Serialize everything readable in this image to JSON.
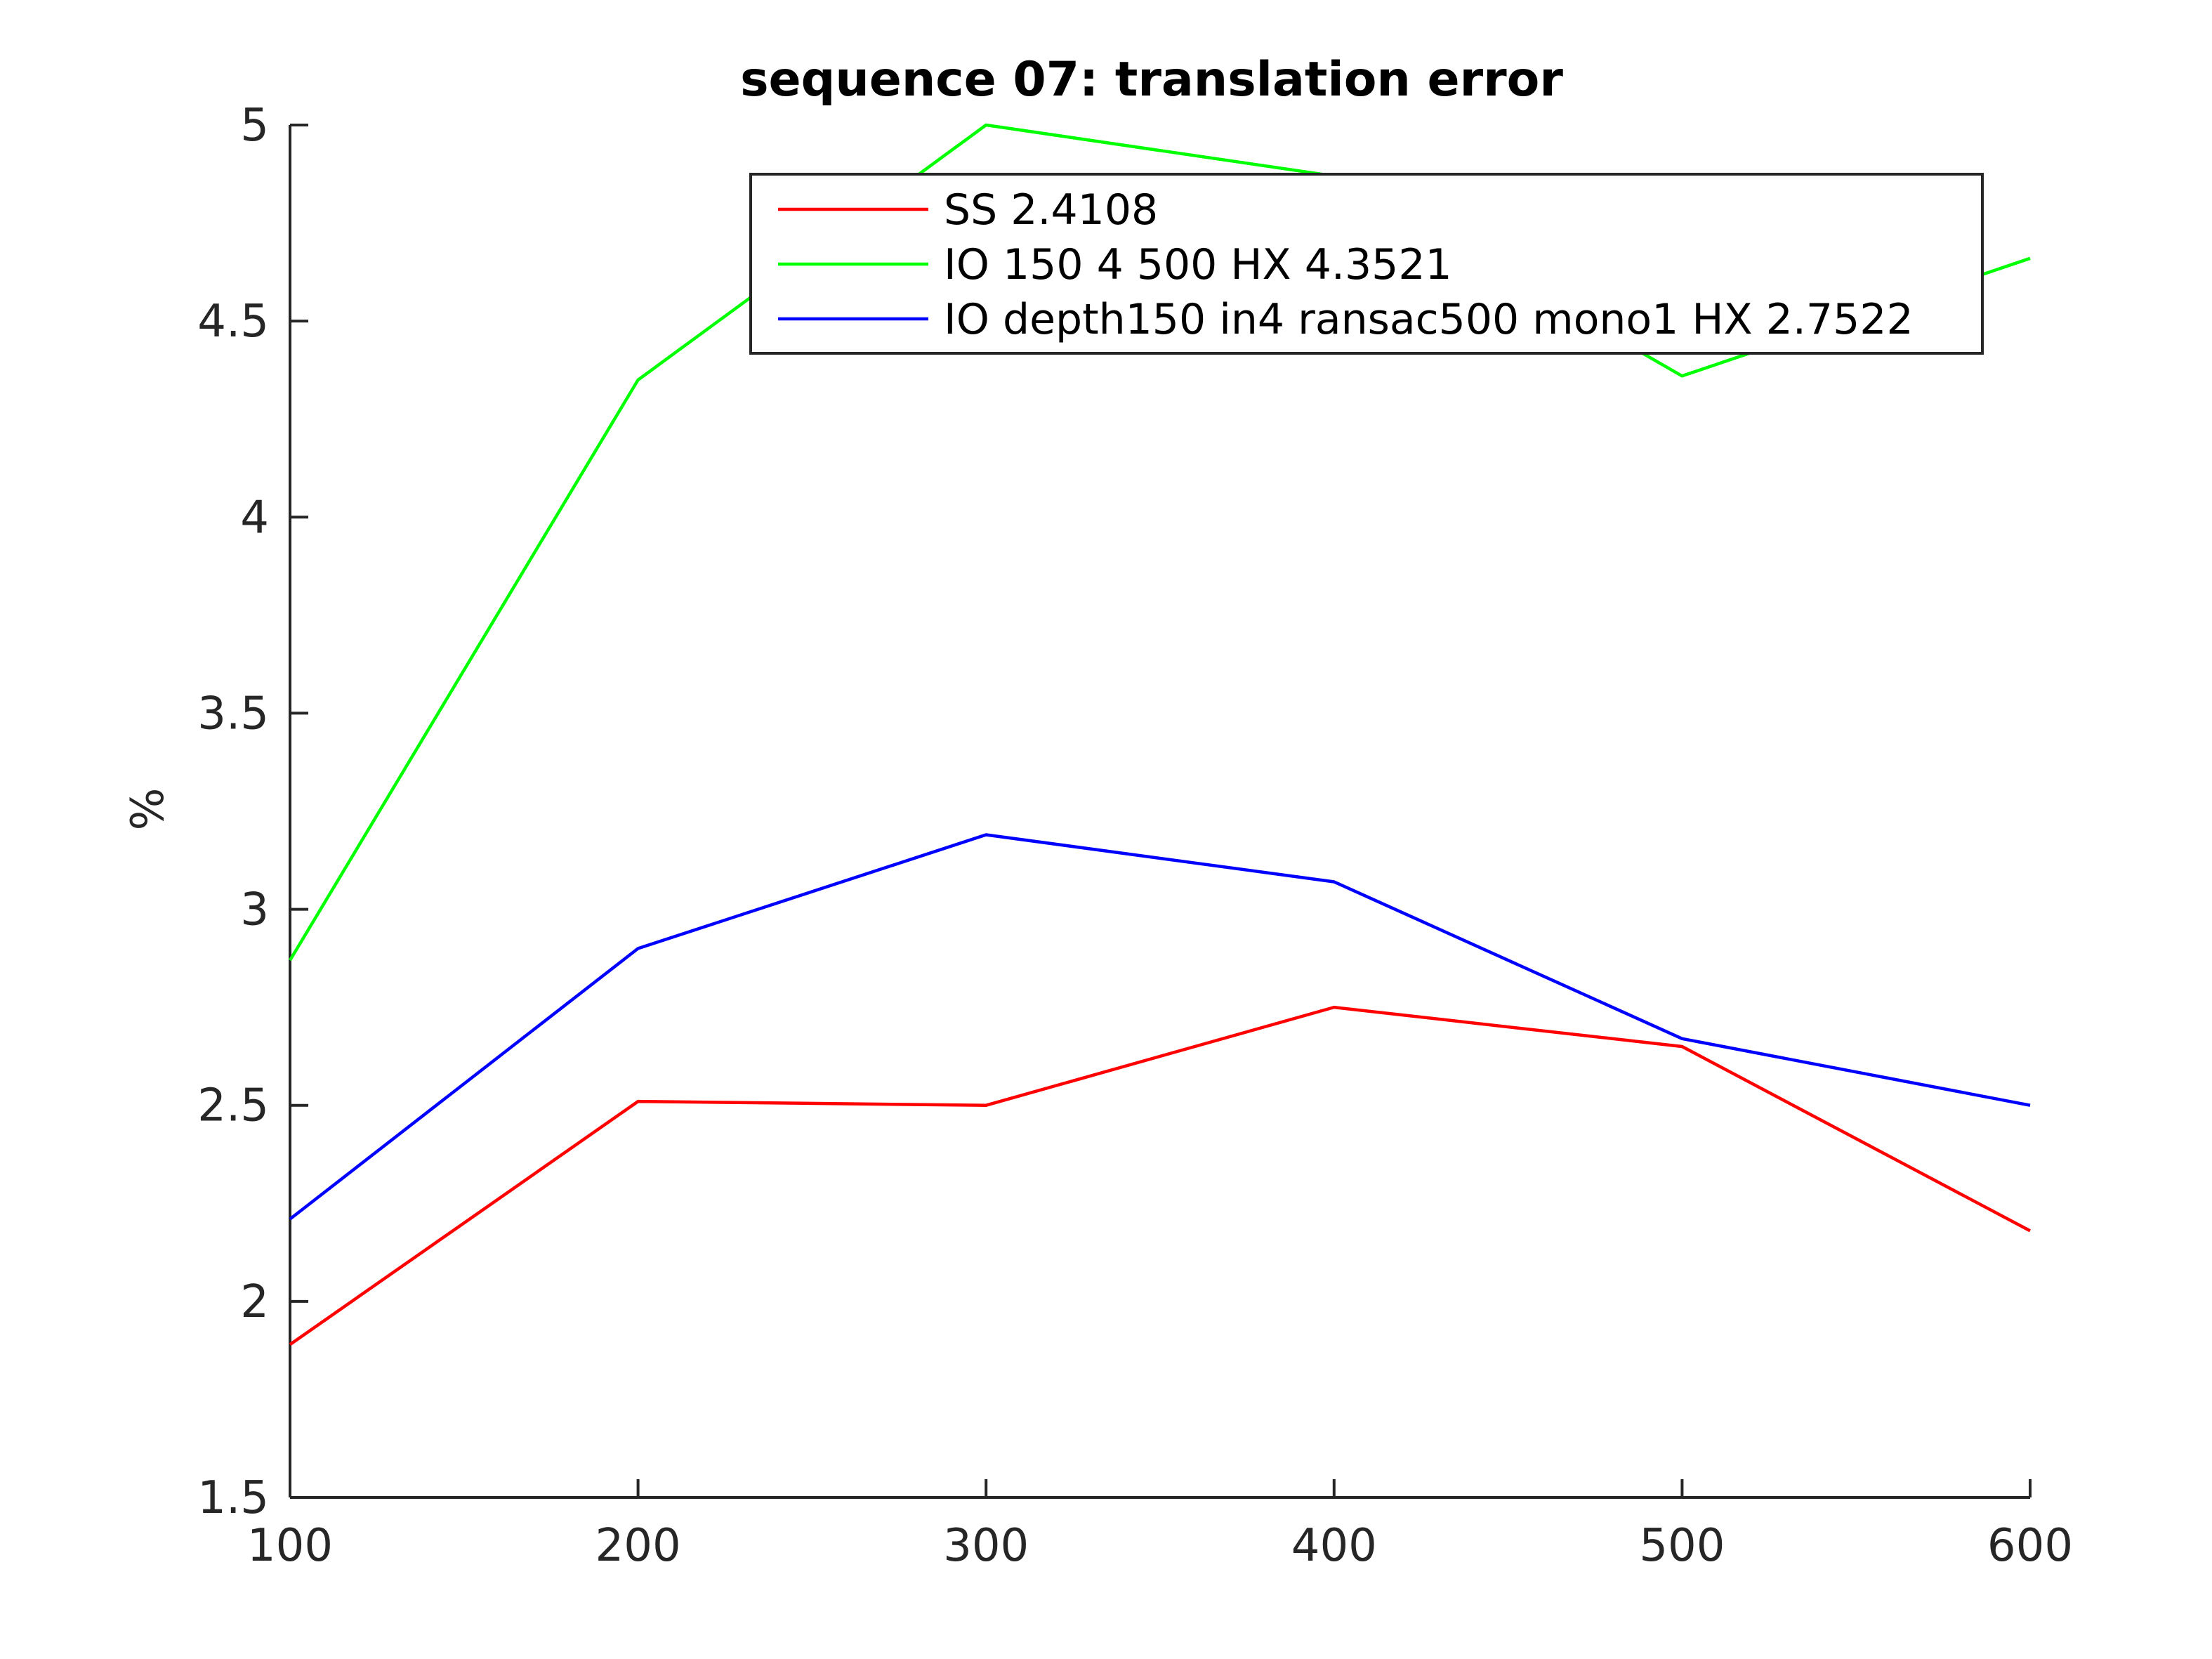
{
  "chart_data": {
    "type": "line",
    "title": "sequence 07: translation error",
    "xlabel": "",
    "ylabel": "%",
    "xlim": [
      100,
      600
    ],
    "ylim": [
      1.5,
      5
    ],
    "xticks": [
      100,
      200,
      300,
      400,
      500,
      600
    ],
    "yticks": [
      1.5,
      2,
      2.5,
      3,
      3.5,
      4,
      4.5,
      5
    ],
    "x": [
      100,
      200,
      300,
      400,
      500,
      600
    ],
    "grid": false,
    "legend_position": "top-right",
    "series": [
      {
        "name": "SS 2.4108",
        "color": "#ff0000",
        "values": [
          1.89,
          2.51,
          2.5,
          2.75,
          2.65,
          2.18
        ]
      },
      {
        "name": "IO 150 4 500 HX 4.3521",
        "color": "#00ff00",
        "values": [
          2.87,
          4.35,
          5.0,
          4.87,
          4.36,
          4.66
        ]
      },
      {
        "name": "IO depth150 in4 ransac500 mono1 HX 2.7522",
        "color": "#0000ff",
        "values": [
          2.21,
          2.9,
          3.19,
          3.07,
          2.67,
          2.5
        ]
      }
    ]
  }
}
